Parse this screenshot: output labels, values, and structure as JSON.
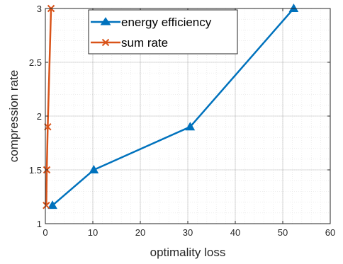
{
  "chart_data": {
    "type": "line",
    "title": "",
    "xlabel": "optimality loss",
    "ylabel": "compression rate",
    "xlim": [
      0,
      60
    ],
    "ylim": [
      1,
      3
    ],
    "xticks": [
      0,
      10,
      20,
      30,
      40,
      50,
      60
    ],
    "yticks": [
      1,
      1.5,
      2,
      2.5,
      3
    ],
    "xtick_labels": [
      "0",
      "10",
      "20",
      "30",
      "40",
      "50",
      "60"
    ],
    "ytick_labels": [
      "1",
      "1.5",
      "2",
      "2.5",
      "3"
    ],
    "grid": true,
    "minor_grid": true,
    "legend_position": "top-center",
    "series": [
      {
        "name": "energy efficiency",
        "color": "#0072BD",
        "marker": "triangle",
        "x": [
          1.5,
          10.2,
          30.5,
          52.3
        ],
        "y": [
          1.17,
          1.5,
          1.9,
          3.0
        ]
      },
      {
        "name": "sum rate",
        "color": "#D95319",
        "marker": "x",
        "x": [
          0.2,
          0.3,
          0.5,
          1.2
        ],
        "y": [
          1.17,
          1.5,
          1.9,
          3.0
        ]
      }
    ]
  }
}
